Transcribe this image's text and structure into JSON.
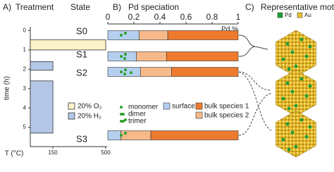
{
  "chart_data": [
    {
      "type": "timeline",
      "panel_label": "A)",
      "title": "Treatment",
      "state_title": "State",
      "x_label": "T (°C)",
      "y_label": "time (h)",
      "xlim": [
        0,
        500
      ],
      "xticks": [
        150,
        500
      ],
      "ylim": [
        -0.2,
        6
      ],
      "yticks": [
        0,
        1,
        2,
        3,
        4,
        5
      ],
      "states": [
        "S0",
        "S1",
        "S2",
        "S3"
      ],
      "series": [
        {
          "name": "20% O₂",
          "color": "#fdf3c8",
          "segments": [
            {
              "start": 0.47,
              "end": 1.0,
              "value": 500
            }
          ]
        },
        {
          "name": "20% H₂",
          "color": "#b4c7e7",
          "segments": [
            {
              "start": 1.6,
              "end": 2.05,
              "value": 150
            },
            {
              "start": 2.6,
              "end": 5.3,
              "value": 150
            }
          ]
        }
      ]
    },
    {
      "type": "stacked-bar",
      "panel_label": "B)",
      "title": "Pd speciation",
      "x_label": "Pd %",
      "xlim": [
        0,
        1
      ],
      "xticks": [
        0,
        0.2,
        0.4,
        0.6,
        0.8,
        1
      ],
      "species": [
        "monomer",
        "dimer",
        "trimer"
      ],
      "species_color": "#2ca02c",
      "series": [
        {
          "name": "surface",
          "color": "#b4cff0",
          "values": [
            0.24,
            0.22,
            0.25,
            0.1
          ]
        },
        {
          "name": "bulk species 2",
          "color": "#f7b98a",
          "values": [
            0.22,
            0.23,
            0.24,
            0.23
          ]
        },
        {
          "name": "bulk species 1",
          "color": "#ee7a2e",
          "values": [
            0.54,
            0.55,
            0.51,
            0.67
          ]
        }
      ]
    },
    {
      "type": "illustration",
      "panel_label": "C)",
      "title": "Representative motif",
      "legend": [
        {
          "name": "Pd",
          "color": "#1a9e3a"
        },
        {
          "name": "Au",
          "color": "#e8c230"
        }
      ]
    }
  ]
}
